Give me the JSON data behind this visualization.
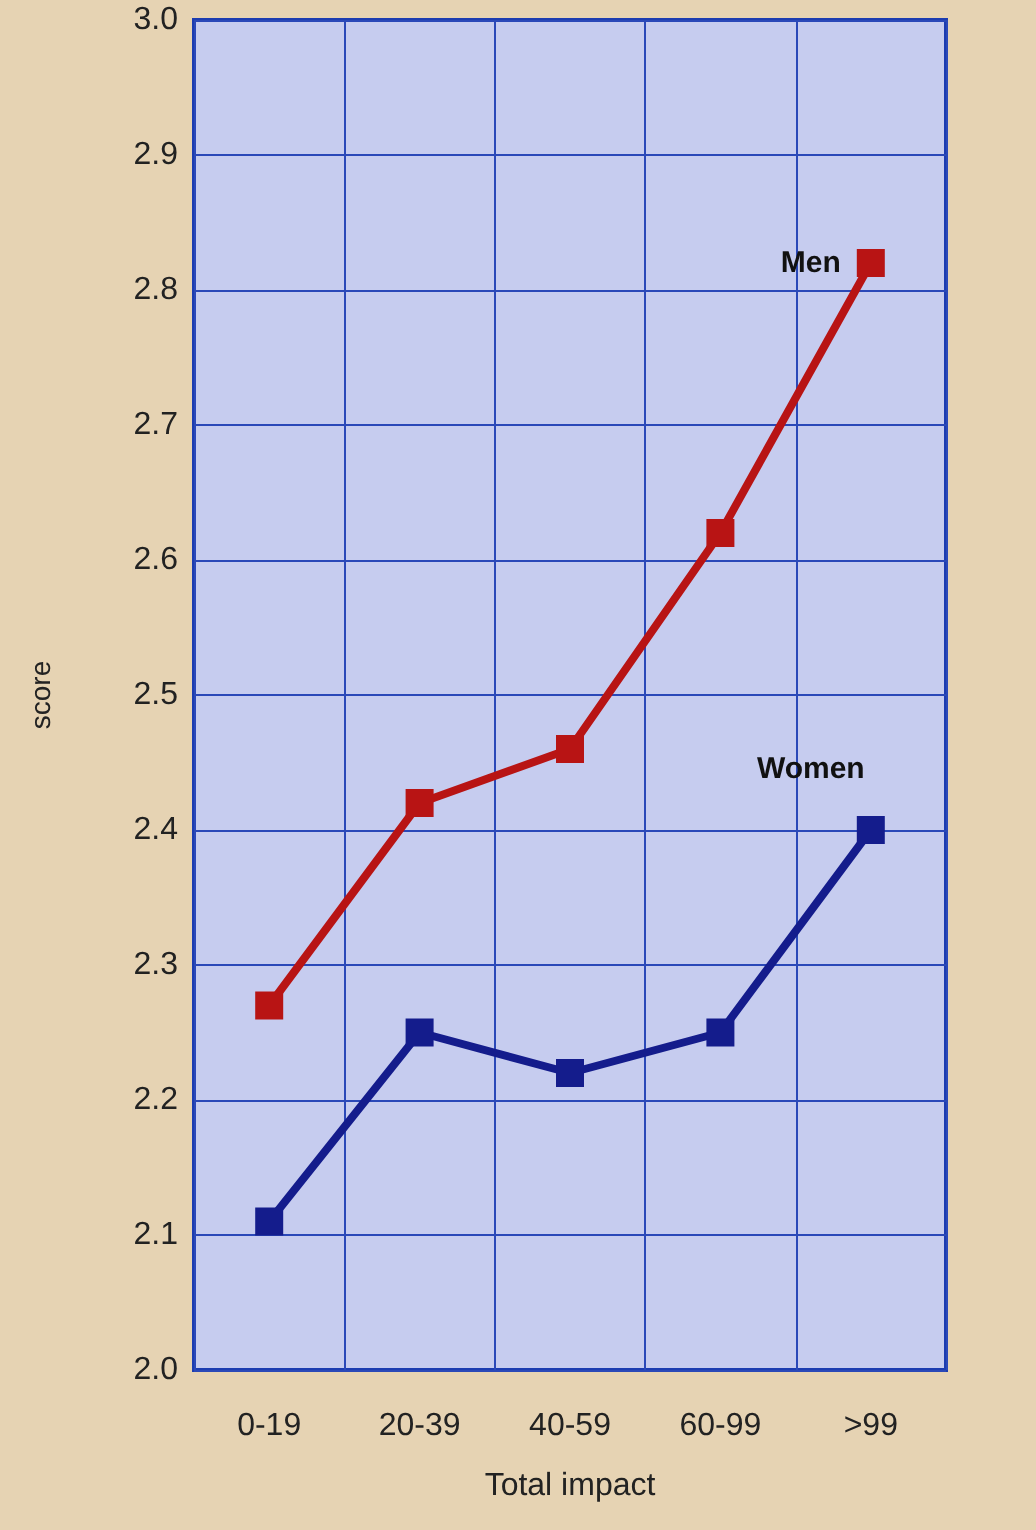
{
  "chart_data": {
    "type": "line",
    "xlabel": "Total impact",
    "ylabel": "score",
    "categories": [
      "0-19",
      "20-39",
      "40-59",
      "60-99",
      ">99"
    ],
    "series": [
      {
        "name": "Men",
        "color": "#b81414",
        "values": [
          2.27,
          2.42,
          2.46,
          2.62,
          2.82
        ]
      },
      {
        "name": "Women",
        "color": "#141c8c",
        "values": [
          2.11,
          2.25,
          2.22,
          2.25,
          2.4
        ]
      }
    ],
    "ylim": [
      2.0,
      3.0
    ],
    "yticks": [
      {
        "value": 2.0,
        "label": "2.0"
      },
      2.1,
      2.2,
      2.3,
      2.4,
      2.5,
      2.6,
      2.7,
      2.8,
      2.9,
      {
        "value": 3.0,
        "label": "3.0"
      }
    ],
    "grid": true,
    "legend": false,
    "marker": "square",
    "line_style": "solid"
  }
}
